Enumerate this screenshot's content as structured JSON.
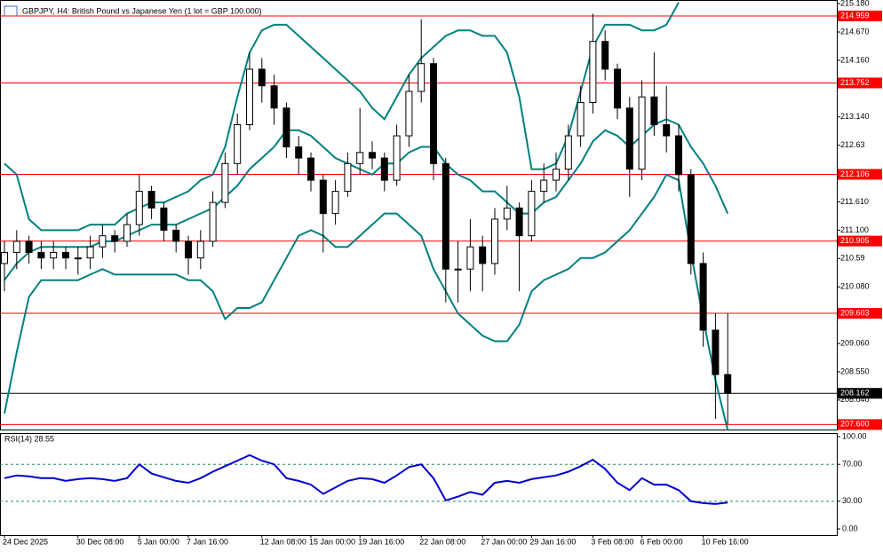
{
  "chart_data": [
    {
      "type": "candlestick",
      "title": "GBPJPY, H4:  British Pound vs Japanese Yen (1 lot = GBP 100.000)",
      "categories": [
        "24 Dec 2025",
        null,
        null,
        null,
        null,
        null,
        "30 Dec 08:00",
        null,
        null,
        null,
        null,
        "5 Jan 00:00",
        null,
        null,
        null,
        "7 Jan 16:00",
        null,
        null,
        null,
        null,
        null,
        "12 Jan 08:00",
        null,
        null,
        null,
        "15 Jan 00:00",
        null,
        null,
        null,
        "19 Jan 16:00",
        null,
        null,
        null,
        null,
        "22 Jan 08:00",
        null,
        null,
        null,
        null,
        "27 Jan 00:00",
        null,
        null,
        null,
        "29 Jan 16:00",
        null,
        null,
        null,
        null,
        "3 Feb 08:00",
        null,
        null,
        null,
        "6 Feb 00:00",
        null,
        null,
        null,
        null,
        "10 Feb 16:00",
        null,
        null
      ],
      "open": [
        210.5,
        210.7,
        210.9,
        210.7,
        210.6,
        210.7,
        210.6,
        210.6,
        210.8,
        211.0,
        210.9,
        211.2,
        211.8,
        211.5,
        211.1,
        210.9,
        210.6,
        210.9,
        211.6,
        212.3,
        213.0,
        214.0,
        213.7,
        213.3,
        212.6,
        212.4,
        212.0,
        211.4,
        211.8,
        212.3,
        212.5,
        212.4,
        212.0,
        212.8,
        213.6,
        214.1,
        212.3,
        210.4,
        210.4,
        210.8,
        210.5,
        211.3,
        211.5,
        211.0,
        211.8,
        212.0,
        212.2,
        212.8,
        213.4,
        214.5,
        214.0,
        213.3,
        212.2,
        213.5,
        213.0,
        212.8,
        212.1,
        210.5,
        209.3,
        208.5
      ],
      "high": [
        210.9,
        211.1,
        211.0,
        210.9,
        210.9,
        210.8,
        210.8,
        211.0,
        211.2,
        211.1,
        211.4,
        212.1,
        211.9,
        211.6,
        211.2,
        211.0,
        211.1,
        211.8,
        212.5,
        213.2,
        214.3,
        214.2,
        213.9,
        213.4,
        212.8,
        212.5,
        212.1,
        212.0,
        212.5,
        213.3,
        212.7,
        212.5,
        213.0,
        213.9,
        214.9,
        214.2,
        212.4,
        210.9,
        211.3,
        211.0,
        211.5,
        211.9,
        211.6,
        212.0,
        212.3,
        212.5,
        213.0,
        213.7,
        215.0,
        214.7,
        214.1,
        213.5,
        213.8,
        214.3,
        213.7,
        213.0,
        212.2,
        210.7,
        209.6,
        209.6
      ],
      "low": [
        210.0,
        210.4,
        210.5,
        210.4,
        210.4,
        210.4,
        210.3,
        210.4,
        210.6,
        210.7,
        210.8,
        211.0,
        211.3,
        210.9,
        210.7,
        210.3,
        210.4,
        210.8,
        211.5,
        212.1,
        212.9,
        213.4,
        213.0,
        212.4,
        212.1,
        211.8,
        210.7,
        211.2,
        211.7,
        212.1,
        212.2,
        211.8,
        211.9,
        212.6,
        213.4,
        212.0,
        209.8,
        209.8,
        210.0,
        210.0,
        210.3,
        211.1,
        210.0,
        210.9,
        211.6,
        211.8,
        212.0,
        212.6,
        213.2,
        213.8,
        213.1,
        211.7,
        212.0,
        212.8,
        212.5,
        211.8,
        210.3,
        209.0,
        207.7,
        207.6
      ],
      "close": [
        210.7,
        210.9,
        210.7,
        210.6,
        210.7,
        210.6,
        210.6,
        210.8,
        211.0,
        210.9,
        211.2,
        211.8,
        211.5,
        211.1,
        210.9,
        210.6,
        210.9,
        211.6,
        212.3,
        213.0,
        214.0,
        213.7,
        213.3,
        212.6,
        212.4,
        212.0,
        211.4,
        211.8,
        212.3,
        212.5,
        212.4,
        212.0,
        212.8,
        213.6,
        214.1,
        212.3,
        210.4,
        210.4,
        210.8,
        210.5,
        211.3,
        211.5,
        211.0,
        211.8,
        212.0,
        212.2,
        212.8,
        213.4,
        214.5,
        214.0,
        213.3,
        212.2,
        213.5,
        213.0,
        212.8,
        212.1,
        210.5,
        209.3,
        208.5,
        208.162
      ],
      "bands": {
        "color": "#008080",
        "upper": [
          212.3,
          212.1,
          211.3,
          211.1,
          211.1,
          211.1,
          211.1,
          211.2,
          211.2,
          211.2,
          211.4,
          211.5,
          211.6,
          211.6,
          211.7,
          211.8,
          212.0,
          212.1,
          212.6,
          213.5,
          214.3,
          214.7,
          214.8,
          214.8,
          214.6,
          214.4,
          214.2,
          214.0,
          213.8,
          213.6,
          213.3,
          213.1,
          213.5,
          213.9,
          214.2,
          214.4,
          214.6,
          214.7,
          214.7,
          214.6,
          214.6,
          214.3,
          213.5,
          212.2,
          212.2,
          212.3,
          212.8,
          213.6,
          214.4,
          214.8,
          214.8,
          214.8,
          214.7,
          214.7,
          214.8,
          215.2,
          null,
          null,
          null,
          null
        ],
        "middle": [
          210.2,
          210.5,
          210.7,
          210.8,
          210.8,
          210.8,
          210.8,
          210.8,
          210.9,
          210.9,
          211.0,
          211.1,
          211.2,
          211.2,
          211.2,
          211.3,
          211.4,
          211.5,
          211.7,
          211.9,
          212.2,
          212.4,
          212.6,
          212.9,
          212.9,
          212.8,
          212.6,
          212.4,
          212.3,
          212.2,
          212.1,
          212.3,
          212.3,
          212.5,
          212.6,
          212.6,
          212.3,
          212.1,
          212.0,
          211.8,
          211.8,
          211.6,
          211.4,
          211.4,
          211.6,
          211.7,
          212.0,
          212.3,
          212.7,
          212.9,
          212.8,
          212.6,
          212.8,
          213.0,
          213.1,
          213.0,
          212.6,
          212.3,
          211.9,
          211.4
        ],
        "lower": [
          207.8,
          208.9,
          209.9,
          210.2,
          210.2,
          210.2,
          210.2,
          210.3,
          210.4,
          210.3,
          210.3,
          210.3,
          210.3,
          210.3,
          210.3,
          210.2,
          210.2,
          210.0,
          209.5,
          209.7,
          209.7,
          209.8,
          210.2,
          210.6,
          211.0,
          211.1,
          211.0,
          210.8,
          210.8,
          211.0,
          211.2,
          211.4,
          211.4,
          211.2,
          211.0,
          210.4,
          210.0,
          209.6,
          209.4,
          209.2,
          209.1,
          209.1,
          209.4,
          210.0,
          210.2,
          210.3,
          210.4,
          210.6,
          210.6,
          210.7,
          210.9,
          211.1,
          211.4,
          211.7,
          212.1,
          212.0,
          210.7,
          209.5,
          208.4,
          207.5
        ]
      },
      "levels": {
        "color": "#ff0000",
        "values": [
          214.959,
          213.752,
          212.106,
          210.905,
          209.603,
          {
            "value": 207.6,
            "label": "207.600"
          }
        ]
      },
      "last_price": 208.162,
      "ylim": [
        207.51,
        215.23
      ],
      "yticks": [
        {
          "value": 215.18,
          "label": "215.180"
        },
        {
          "value": 214.67,
          "label": "214.670"
        },
        {
          "value": 214.16,
          "label": "214.160"
        },
        {
          "value": 213.14,
          "label": "213.140"
        },
        212.63,
        {
          "value": 211.61,
          "label": "211.610"
        },
        {
          "value": 211.1,
          "label": "211.100"
        },
        210.59,
        {
          "value": 210.08,
          "label": "210.080"
        },
        {
          "value": 209.06,
          "label": "209.060"
        },
        {
          "value": 208.55,
          "label": "208.550"
        },
        {
          "value": 208.04,
          "label": "208.040"
        }
      ]
    },
    {
      "type": "line",
      "title": "RSI(14) 28.55",
      "color": "#0000cd",
      "values": [
        55,
        58,
        57,
        55,
        55,
        52,
        54,
        55,
        54,
        52,
        55,
        70,
        60,
        56,
        52,
        50,
        55,
        62,
        68,
        74,
        80,
        74,
        70,
        55,
        52,
        48,
        38,
        45,
        52,
        55,
        54,
        50,
        58,
        67,
        70,
        55,
        31,
        35,
        40,
        37,
        50,
        52,
        50,
        54,
        56,
        58,
        62,
        68,
        75,
        65,
        50,
        42,
        55,
        48,
        48,
        42,
        30,
        28,
        27,
        28.55
      ],
      "levels": [
        70,
        30
      ],
      "ylim": [
        -6.7,
        102.9
      ],
      "yticks": [
        {
          "value": 100,
          "label": "100.00"
        },
        {
          "value": 70,
          "label": "70.00"
        },
        {
          "value": 30,
          "label": "30.00"
        },
        {
          "value": 0,
          "label": "0.00"
        }
      ]
    }
  ]
}
